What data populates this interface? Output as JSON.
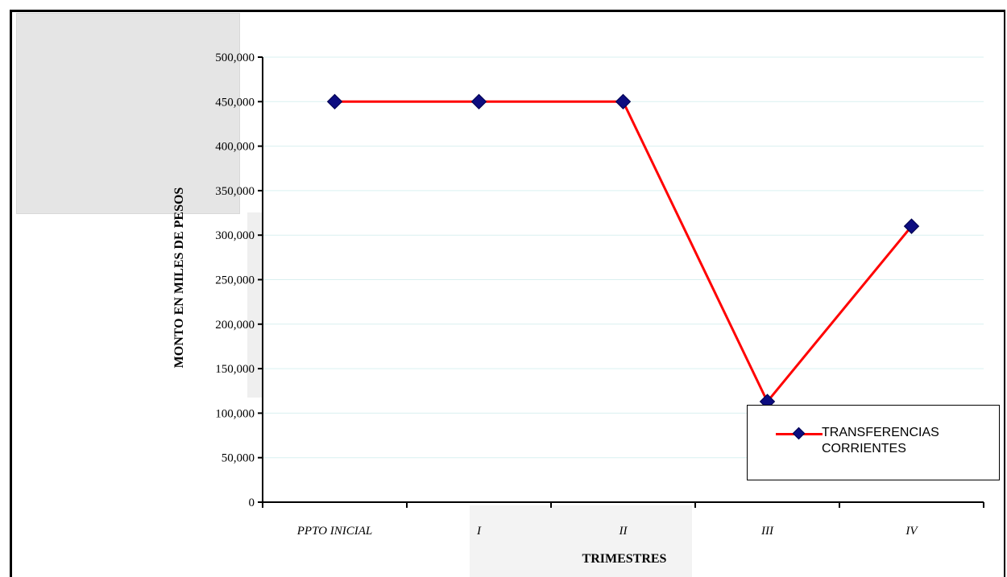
{
  "chart_data": {
    "type": "line",
    "categories": [
      "PPTO INICIAL",
      "I",
      "II",
      "III",
      "IV"
    ],
    "series": [
      {
        "name": "TRANSFERENCIAS CORRIENTES",
        "values": [
          450000,
          450000,
          450000,
          113000,
          310000
        ],
        "color": "#ff0000",
        "marker_color": "#0d0d80"
      }
    ],
    "xlabel": "TRIMESTRES",
    "ylabel": "MONTO EN MILES DE PESOS",
    "ylim": [
      0,
      500000
    ],
    "yticks": [
      0,
      50000,
      100000,
      150000,
      200000,
      250000,
      300000,
      350000,
      400000,
      450000,
      500000
    ],
    "ytick_labels": [
      "0",
      "50,000",
      "100,000",
      "150,000",
      "200,000",
      "250,000",
      "300,000",
      "350,000",
      "400,000",
      "450,000",
      "500,000"
    ],
    "grid": true,
    "grid_color": "#d9f0f0",
    "legend_position": "bottom-right"
  }
}
